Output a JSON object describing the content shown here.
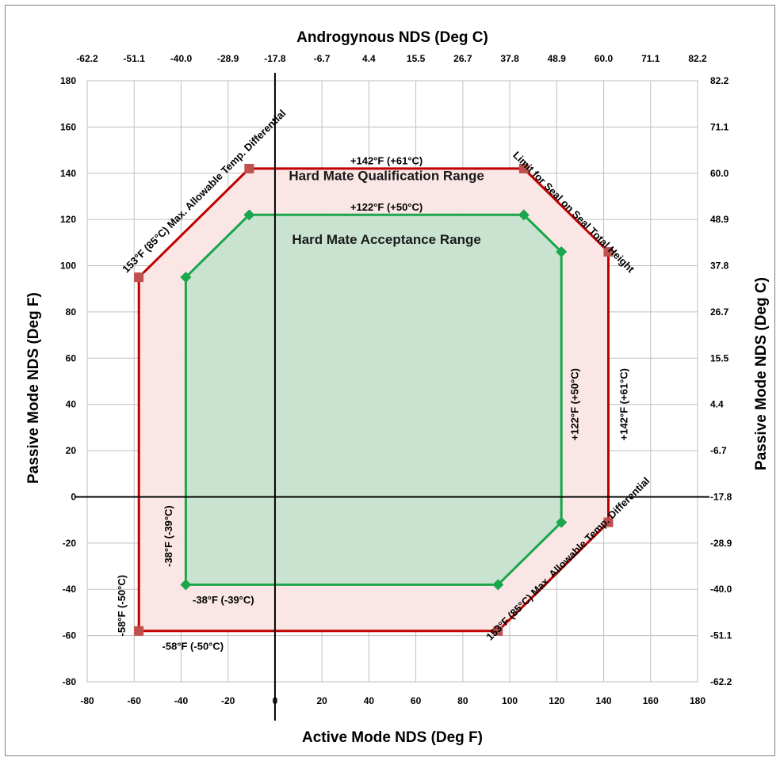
{
  "chart_data": {
    "type": "scatter",
    "xlabel": "Active Mode NDS (Deg F)",
    "ylabel": "Passive Mode NDS (Deg F)",
    "x2label": "Androgynous NDS (Deg C)",
    "y2label": "Passive Mode NDS (Deg C)",
    "xlim": [
      -80,
      180
    ],
    "ylim": [
      -80,
      180
    ],
    "grid": true,
    "x_ticks": [
      "-80",
      "-60",
      "-40",
      "-20",
      "0",
      "20",
      "40",
      "60",
      "80",
      "100",
      "120",
      "140",
      "160",
      "180"
    ],
    "y_ticks": [
      "-80",
      "-60",
      "-40",
      "-20",
      "0",
      "20",
      "40",
      "60",
      "80",
      "100",
      "120",
      "140",
      "160",
      "180"
    ],
    "x2_ticks": [
      "-62.2",
      "-51.1",
      "-40.0",
      "-28.9",
      "-17.8",
      "-6.7",
      "4.4",
      "15.5",
      "26.7",
      "37.8",
      "48.9",
      "60.0",
      "71.1",
      "82.2"
    ],
    "y2_ticks": [
      "-62.2",
      "-51.1",
      "-40.0",
      "-28.9",
      "-17.8",
      "-6.7",
      "4.4",
      "15.5",
      "26.7",
      "37.8",
      "48.9",
      "60.0",
      "71.1",
      "82.2"
    ],
    "series": [
      {
        "color": "#c00000",
        "fill": "#fbe5e5",
        "marker": "square",
        "marker_color": "#c0504d",
        "points": [
          [
            -58,
            -58
          ],
          [
            -58,
            95
          ],
          [
            -11,
            142
          ],
          [
            106,
            142
          ],
          [
            142,
            106
          ],
          [
            142,
            -11
          ],
          [
            95,
            -58
          ]
        ]
      },
      {
        "color": "#1aa64a",
        "fill": "#c6e3cf",
        "marker": "diamond",
        "marker_color": "#1aa64a",
        "points": [
          [
            -38,
            -38
          ],
          [
            -38,
            95
          ],
          [
            -11,
            122
          ],
          [
            106,
            122
          ],
          [
            122,
            106
          ],
          [
            122,
            -11
          ],
          [
            95,
            -38
          ]
        ]
      }
    ],
    "annotations": [
      {
        "text": "+142°F (+61°C)",
        "x": 47.5,
        "y": 145,
        "rotate": 0
      },
      {
        "text": "Hard Mate Qualification Range",
        "x": 47.5,
        "y": 138.5,
        "rotate": 0,
        "style": "region"
      },
      {
        "text": "+122°F (+50°C)",
        "x": 47.5,
        "y": 125,
        "rotate": 0
      },
      {
        "text": "Hard Mate Acceptance Range",
        "x": 47.5,
        "y": 111,
        "rotate": 0,
        "style": "region"
      },
      {
        "text": "153°F (85°C) Max. Allowable Temp. Differential",
        "x": -30,
        "y": 132,
        "rotate": -45
      },
      {
        "text": "Limit for Seal on Seal Total Height",
        "x": 127,
        "y": 123,
        "rotate": 45
      },
      {
        "text": "+122°F (+50°C)",
        "x": 128,
        "y": 40,
        "rotate": -90
      },
      {
        "text": "+142°F (+61°C)",
        "x": 149,
        "y": 40,
        "rotate": -90
      },
      {
        "text": "153°F (85°C) Max. Allowable Temp. Differential",
        "x": 125,
        "y": -27,
        "rotate": -45
      },
      {
        "text": "-38°F (-39°C)",
        "x": -45,
        "y": -17,
        "rotate": -90
      },
      {
        "text": "-38°F (-39°C)",
        "x": -22,
        "y": -45,
        "rotate": 0
      },
      {
        "text": "-58°F (-50°C)",
        "x": -65,
        "y": -47,
        "rotate": -90
      },
      {
        "text": "-58°F (-50°C)",
        "x": -35,
        "y": -65,
        "rotate": 0
      }
    ]
  }
}
